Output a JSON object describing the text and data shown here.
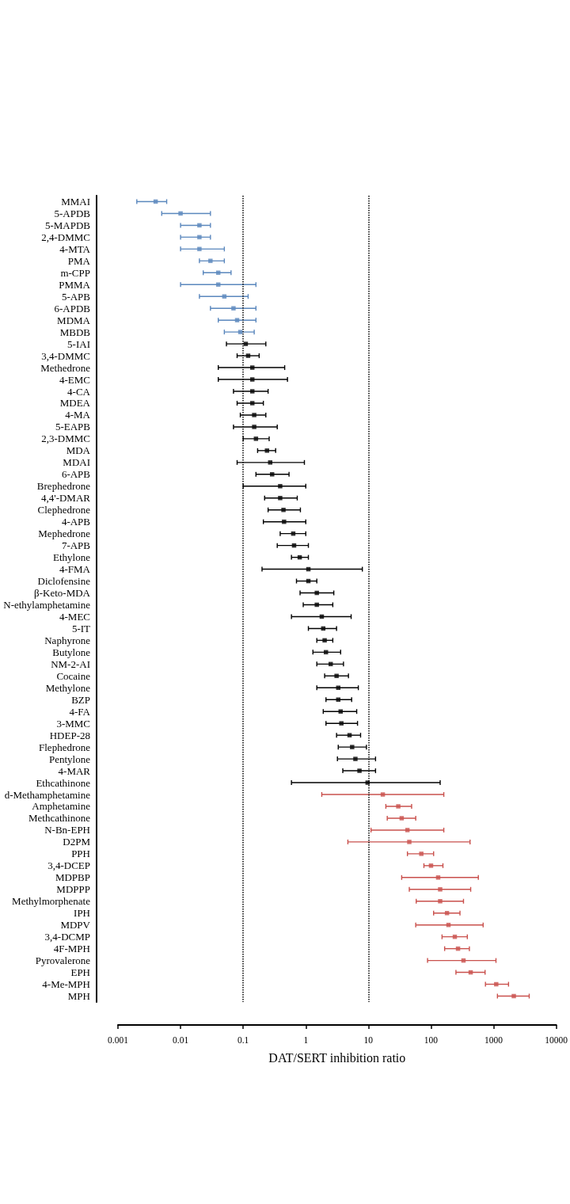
{
  "chart_data": {
    "type": "scatter",
    "orientation": "horizontal",
    "xlabel": "DAT/SERT inhibition ratio",
    "categories": [
      "MMAI",
      "5-APDB",
      "5-MAPDB",
      "2,4-DMMC",
      "4-MTA",
      "PMA",
      "m-CPP",
      "PMMA",
      "5-APB",
      "6-APDB",
      "MDMA",
      "MBDB",
      "5-IAI",
      "3,4-DMMC",
      "Methedrone",
      "4-EMC",
      "4-CA",
      "MDEA",
      "4-MA",
      "5-EAPB",
      "2,3-DMMC",
      "MDA",
      "MDAI",
      "6-APB",
      "Brephedrone",
      "4,4'-DMAR",
      "Clephedrone",
      "4-APB",
      "Mephedrone",
      "7-APB",
      "Ethylone",
      "4-FMA",
      "Diclofensine",
      "β-Keto-MDA",
      "N-ethylamphetamine",
      "4-MEC",
      "5-IT",
      "Naphyrone",
      "Butylone",
      "NM-2-AI",
      "Cocaine",
      "Methylone",
      "BZP",
      "4-FA",
      "3-MMC",
      "HDEP-28",
      "Flephedrone",
      "Pentylone",
      "4-MAR",
      "Ethcathinone",
      "d-Methamphetamine",
      "Amphetamine",
      "Methcathinone",
      "N-Bn-EPH",
      "D2PM",
      "PPH",
      "3,4-DCEP",
      "MDPBP",
      "MDPPP",
      "Methylmorphenate",
      "IPH",
      "MDPV",
      "3,4-DCMP",
      "4F-MPH",
      "Pyrovalerone",
      "EPH",
      "4-Me-MPH",
      "MPH"
    ],
    "values": [
      0.004,
      0.01,
      0.02,
      0.02,
      0.02,
      0.03,
      0.04,
      0.04,
      0.05,
      0.07,
      0.08,
      0.09,
      0.11,
      0.12,
      0.14,
      0.14,
      0.14,
      0.14,
      0.15,
      0.15,
      0.16,
      0.24,
      0.27,
      0.29,
      0.39,
      0.39,
      0.44,
      0.45,
      0.63,
      0.65,
      0.8,
      1.1,
      1.1,
      1.5,
      1.5,
      1.8,
      1.9,
      2,
      2.1,
      2.5,
      3.1,
      3.3,
      3.3,
      3.6,
      3.7,
      5,
      5.5,
      6.2,
      7.2,
      9.7,
      17,
      30,
      34,
      42,
      45,
      70,
      100,
      130,
      140,
      140,
      180,
      190,
      240,
      270,
      330,
      430,
      1100,
      2100
    ],
    "errors": [
      [
        0.002,
        0.006
      ],
      [
        0.005,
        0.03
      ],
      [
        0.01,
        0.03
      ],
      [
        0.01,
        0.03
      ],
      [
        0.01,
        0.05
      ],
      [
        0.02,
        0.05
      ],
      [
        0.023,
        0.064
      ],
      [
        0.01,
        0.16
      ],
      [
        0.02,
        0.12
      ],
      [
        0.03,
        0.16
      ],
      [
        0.04,
        0.16
      ],
      [
        0.05,
        0.15
      ],
      [
        0.054,
        0.23
      ],
      [
        0.08,
        0.18
      ],
      [
        0.04,
        0.46
      ],
      [
        0.04,
        0.51
      ],
      [
        0.07,
        0.25
      ],
      [
        0.08,
        0.21
      ],
      [
        0.09,
        0.23
      ],
      [
        0.07,
        0.35
      ],
      [
        0.1,
        0.26
      ],
      [
        0.17,
        0.33
      ],
      [
        0.08,
        0.95
      ],
      [
        0.16,
        0.54
      ],
      [
        0.1,
        1
      ],
      [
        0.22,
        0.73
      ],
      [
        0.25,
        0.82
      ],
      [
        0.21,
        1
      ],
      [
        0.39,
        1
      ],
      [
        0.35,
        1.1
      ],
      [
        0.59,
        1.1
      ],
      [
        0.2,
        8
      ],
      [
        0.71,
        1.5
      ],
      [
        0.81,
        2.8
      ],
      [
        0.91,
        2.7
      ],
      [
        0.59,
        5.3
      ],
      [
        1.1,
        3.1
      ],
      [
        1.5,
        2.7
      ],
      [
        1.3,
        3.6
      ],
      [
        1.5,
        4
      ],
      [
        2,
        4.8
      ],
      [
        1.5,
        6.9
      ],
      [
        2.1,
        5.4
      ],
      [
        1.9,
        6.5
      ],
      [
        2.1,
        6.7
      ],
      [
        3.1,
        7.5
      ],
      [
        3.3,
        9.3
      ],
      [
        3.2,
        13
      ],
      [
        3.9,
        13
      ],
      [
        0.59,
        140
      ],
      [
        1.8,
        160
      ],
      [
        19,
        49
      ],
      [
        20,
        57
      ],
      [
        11,
        160
      ],
      [
        4.7,
        420
      ],
      [
        42,
        110
      ],
      [
        77,
        155
      ],
      [
        34,
        570
      ],
      [
        45,
        430
      ],
      [
        58,
        330
      ],
      [
        110,
        290
      ],
      [
        57,
        680
      ],
      [
        150,
        380
      ],
      [
        165,
        410
      ],
      [
        88,
        1090
      ],
      [
        250,
        730
      ],
      [
        740,
        1730
      ],
      [
        1150,
        3700
      ]
    ],
    "colors": [
      "#5a87bd",
      "#5a87bd",
      "#5a87bd",
      "#5a87bd",
      "#5a87bd",
      "#5a87bd",
      "#5a87bd",
      "#5a87bd",
      "#5a87bd",
      "#5a87bd",
      "#5a87bd",
      "#5a87bd",
      "#000000",
      "#000000",
      "#000000",
      "#000000",
      "#000000",
      "#000000",
      "#000000",
      "#000000",
      "#000000",
      "#000000",
      "#000000",
      "#000000",
      "#000000",
      "#000000",
      "#000000",
      "#000000",
      "#000000",
      "#000000",
      "#000000",
      "#000000",
      "#000000",
      "#000000",
      "#000000",
      "#000000",
      "#000000",
      "#000000",
      "#000000",
      "#000000",
      "#000000",
      "#000000",
      "#000000",
      "#000000",
      "#000000",
      "#000000",
      "#000000",
      "#000000",
      "#000000",
      "#000000",
      "#c9504c",
      "#c9504c",
      "#c9504c",
      "#c9504c",
      "#c9504c",
      "#c9504c",
      "#c9504c",
      "#c9504c",
      "#c9504c",
      "#c9504c",
      "#c9504c",
      "#c9504c",
      "#c9504c",
      "#c9504c",
      "#c9504c",
      "#c9504c",
      "#c9504c",
      "#c9504c"
    ],
    "marker": "square",
    "log": "x",
    "xlim": [
      0.001,
      10000
    ],
    "xticks": [
      0.001,
      0.01,
      0.1,
      1,
      10,
      100,
      1000,
      10000
    ],
    "ref_lines": [
      {
        "axis": "x",
        "value": 0.1,
        "color": "#000000",
        "line_style": "dotted"
      },
      {
        "axis": "x",
        "value": 10,
        "color": "#000000",
        "line_style": "dotted"
      }
    ]
  }
}
